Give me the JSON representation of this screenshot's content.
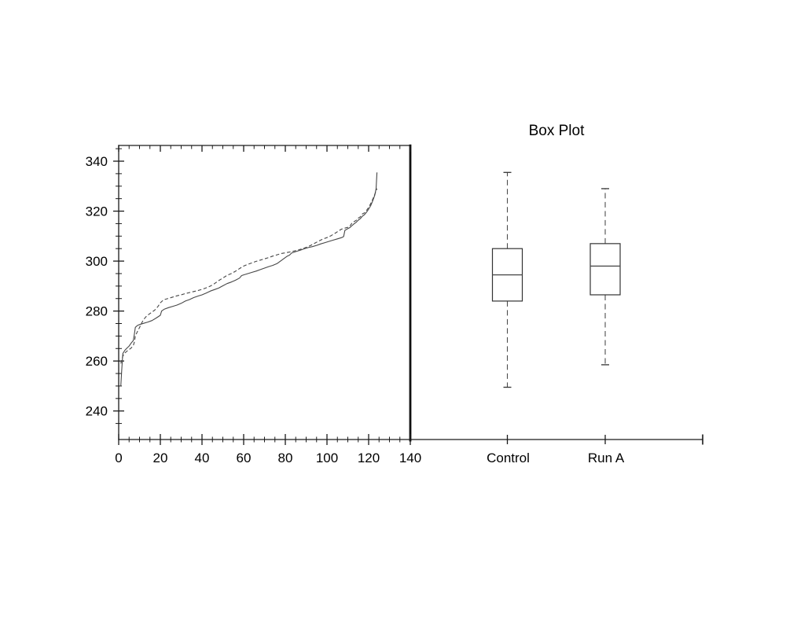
{
  "figure": {
    "background": "#ffffff",
    "axis_color": "#1a1a1a",
    "curve_color": "#464646",
    "box_edge_color": "#333333",
    "median_color": "#4d4d4d",
    "whisker_color": "#4d4d4d",
    "text_color": "#000000"
  },
  "chart_data": [
    {
      "type": "line",
      "title": "",
      "xlabel": "",
      "ylabel": "",
      "xlim": [
        0,
        140
      ],
      "ylim": [
        228.5,
        346.5
      ],
      "x_ticks": [
        0,
        20,
        40,
        60,
        80,
        100,
        120,
        140
      ],
      "y_ticks": [
        240,
        260,
        280,
        300,
        320,
        340
      ],
      "x_minor_step": 5,
      "y_minor_step": 5,
      "grid": false,
      "legend": "none",
      "description": "Sorted (quantile) curves of the two runs; solid = Control, dashed = Run A",
      "series": [
        {
          "name": "Control",
          "line_style": "solid",
          "x": [
            1,
            1.4,
            1.8,
            2,
            3,
            4,
            5,
            6,
            7,
            7.4,
            8,
            9,
            10,
            12,
            14,
            16,
            18,
            20,
            20.6,
            22,
            24,
            26,
            28,
            30,
            32,
            34,
            36,
            38,
            40,
            42,
            44,
            46,
            48,
            50,
            52,
            54,
            56,
            58,
            59,
            60,
            62,
            64,
            66,
            68,
            70,
            72,
            74,
            76,
            78,
            80,
            81,
            82,
            83,
            85,
            87,
            89,
            91,
            93,
            95,
            97,
            99,
            101,
            103,
            105,
            107,
            108,
            108.6,
            110,
            111,
            112,
            113,
            114,
            115,
            116,
            117,
            118,
            119,
            120,
            121,
            122,
            123,
            123.6,
            124
          ],
          "values": [
            250,
            255.5,
            261,
            263,
            264.3,
            265.2,
            266,
            267.2,
            268.2,
            270,
            273.5,
            274.2,
            274.6,
            275.1,
            275.6,
            276.2,
            277.2,
            278.3,
            280,
            280.8,
            281.4,
            281.9,
            282.4,
            283.1,
            284,
            284.6,
            285.4,
            286,
            286.5,
            287.2,
            288,
            288.6,
            289.2,
            290.1,
            291,
            291.6,
            292.3,
            293.2,
            294.2,
            294.5,
            295,
            295.5,
            296,
            296.6,
            297.2,
            297.8,
            298.3,
            299,
            300.2,
            301.4,
            302,
            302.4,
            303.2,
            303.8,
            304.3,
            304.9,
            305.4,
            305.8,
            306.3,
            306.9,
            307.4,
            307.9,
            308.4,
            308.9,
            309.4,
            309.8,
            312.3,
            313,
            313.4,
            314.2,
            314.9,
            315.5,
            316.4,
            317,
            318,
            318.6,
            319.6,
            320.8,
            322.2,
            324.2,
            326.5,
            329,
            335.5
          ]
        },
        {
          "name": "Run A",
          "line_style": "dashed",
          "x": [
            1,
            2,
            3,
            4,
            5,
            6,
            7,
            7.5,
            8,
            9,
            10,
            11,
            12,
            13,
            14,
            15,
            16,
            17,
            18,
            19,
            20,
            21,
            22,
            24,
            26,
            28,
            30,
            32,
            34,
            36,
            38,
            40,
            42,
            44,
            46,
            48,
            50,
            52,
            54,
            56,
            58,
            60,
            62,
            64,
            66,
            68,
            70,
            72,
            74,
            76,
            78,
            80,
            82,
            84,
            86,
            88,
            90,
            92,
            94,
            96,
            98,
            100,
            102,
            104,
            106,
            107,
            108,
            110,
            111,
            112,
            113,
            114,
            115,
            116,
            117,
            118,
            119,
            120,
            121,
            122,
            123,
            124
          ],
          "values": [
            259,
            262,
            263.2,
            264,
            264.6,
            265.2,
            266.2,
            267.5,
            270,
            271.8,
            273.4,
            275.2,
            276.6,
            277.6,
            278.4,
            279,
            279.6,
            280.2,
            280.9,
            282,
            283.3,
            284.1,
            284.6,
            285.1,
            285.6,
            286.1,
            286.5,
            287,
            287.4,
            287.8,
            288.2,
            288.7,
            289.3,
            290,
            291,
            292.2,
            293.2,
            294.3,
            295,
            295.9,
            297,
            298,
            298.7,
            299.3,
            299.9,
            300.4,
            300.9,
            301.4,
            302,
            302.5,
            303,
            303.3,
            303.6,
            304,
            304.4,
            304.9,
            305.5,
            306.2,
            307.1,
            308,
            308.8,
            309.4,
            310.2,
            311.2,
            312.3,
            312.8,
            313.1,
            313.5,
            314,
            315.2,
            315.8,
            316.3,
            317.2,
            317.7,
            318.9,
            319.3,
            320.3,
            321.5,
            323,
            324.8,
            326.8,
            329
          ]
        }
      ]
    },
    {
      "type": "boxplot",
      "title": "Box Plot",
      "categories": [
        "Control",
        "Run A"
      ],
      "ylim": [
        228.5,
        346.5
      ],
      "grid": false,
      "boxes": [
        {
          "label": "Control",
          "whisker_low": 249.5,
          "q1": 284,
          "median": 294.5,
          "q3": 305,
          "whisker_high": 335.5
        },
        {
          "label": "Run A",
          "whisker_low": 258.5,
          "q1": 286.5,
          "median": 298,
          "q3": 307,
          "whisker_high": 329
        }
      ]
    }
  ]
}
